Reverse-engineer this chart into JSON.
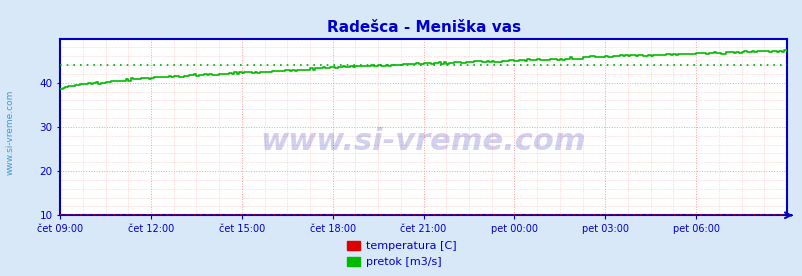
{
  "title": "Radešca - Meniška vas",
  "title_color": "#0000cc",
  "title_fontsize": 11,
  "bg_color": "#d8e8f8",
  "plot_bg_color": "#ffffff",
  "grid_color_major": "#ff9999",
  "grid_color_minor": "#ffaaaa",
  "border_color": "#0000cc",
  "tick_color": "#0000cc",
  "watermark": "www.si-vreme.com",
  "watermark_color": "#0000aa",
  "watermark_alpha": 0.18,
  "watermark_fontsize": 22,
  "side_text": "www.si-vreme.com",
  "side_text_color": "#4499cc",
  "side_text_fontsize": 6.5,
  "ylim": [
    10,
    50
  ],
  "yticks": [
    10,
    20,
    30,
    40
  ],
  "xstart": 0,
  "xend": 288,
  "xtick_positions": [
    0,
    36,
    72,
    108,
    144,
    180,
    216,
    252
  ],
  "xtick_labels": [
    "čet 09:00",
    "čet 12:00",
    "čet 15:00",
    "čet 18:00",
    "čet 21:00",
    "pet 00:00",
    "pet 03:00",
    "pet 06:00"
  ],
  "temp_color": "#dd0000",
  "flow_color": "#00bb00",
  "avg_temp_color": "#dd0000",
  "avg_flow_color": "#00aa00",
  "temp_value": 10.0,
  "avg_temp": 10.0,
  "avg_flow": 44.0,
  "flow_start": 38.5,
  "flow_end": 47.2,
  "flow_step_count": 288,
  "legend_temp_label": "temperatura [C]",
  "legend_flow_label": "pretok [m3/s]",
  "legend_fontsize": 8,
  "legend_color": "#0000cc"
}
